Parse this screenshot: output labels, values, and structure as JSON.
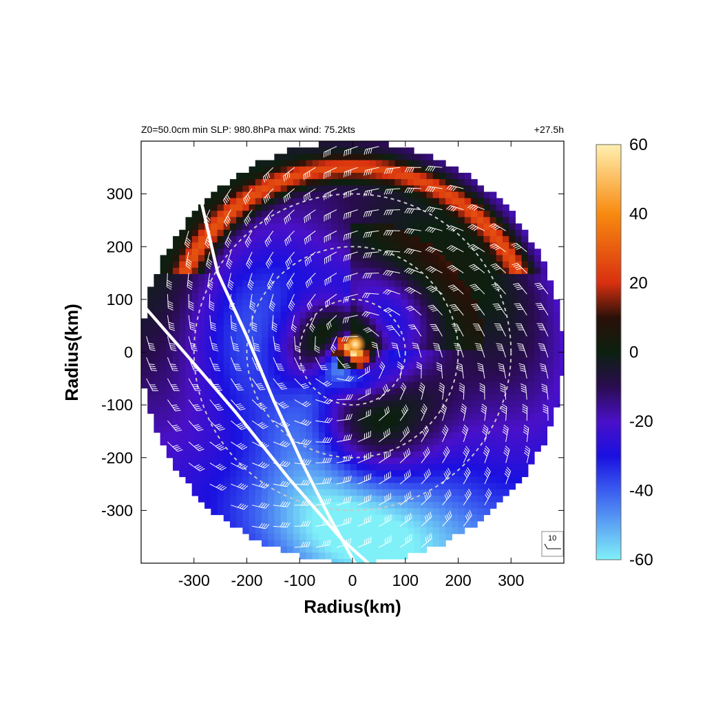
{
  "header": {
    "params": "Z0=50.0cm  min SLP: 980.8hPa   max wind: 75.2kts",
    "time": "+27.5h"
  },
  "chart_data": {
    "type": "heatmap",
    "xlabel": "Radius(km)",
    "ylabel": "Radius(km)",
    "xlim": [
      -400,
      400
    ],
    "ylim": [
      -400,
      400
    ],
    "x_ticks": [
      -300,
      -200,
      -100,
      0,
      100,
      200,
      300
    ],
    "y_ticks": [
      300,
      200,
      100,
      0,
      -100,
      -200,
      -300
    ],
    "domain_radius_km": 400,
    "range_rings_km": [
      100,
      200,
      300
    ],
    "colorbar": {
      "min": -60,
      "max": 60,
      "ticks": [
        60,
        40,
        20,
        0,
        -20,
        -40,
        -60
      ],
      "stops": [
        {
          "value": -60,
          "color": "#80f0f8"
        },
        {
          "value": -40,
          "color": "#3a5cf0"
        },
        {
          "value": -30,
          "color": "#1a10e0"
        },
        {
          "value": -20,
          "color": "#4a10c8"
        },
        {
          "value": -10,
          "color": "#2a0c50"
        },
        {
          "value": 0,
          "color": "#0c2010"
        },
        {
          "value": 10,
          "color": "#2a1008"
        },
        {
          "value": 20,
          "color": "#d83010"
        },
        {
          "value": 40,
          "color": "#f88a10"
        },
        {
          "value": 60,
          "color": "#fff0b0"
        }
      ]
    },
    "wind_reference": {
      "label": "10"
    },
    "white_lines": [
      {
        "points": [
          [
            -285,
            280
          ],
          [
            -255,
            150
          ],
          [
            -200,
            30
          ],
          [
            -150,
            -90
          ],
          [
            -95,
            -210
          ],
          [
            -45,
            -310
          ],
          [
            5,
            -400
          ]
        ]
      },
      {
        "points": [
          [
            -390,
            82
          ],
          [
            -310,
            -10
          ],
          [
            -220,
            -115
          ],
          [
            -120,
            -240
          ],
          [
            -20,
            -355
          ],
          [
            30,
            -400
          ]
        ]
      }
    ]
  }
}
